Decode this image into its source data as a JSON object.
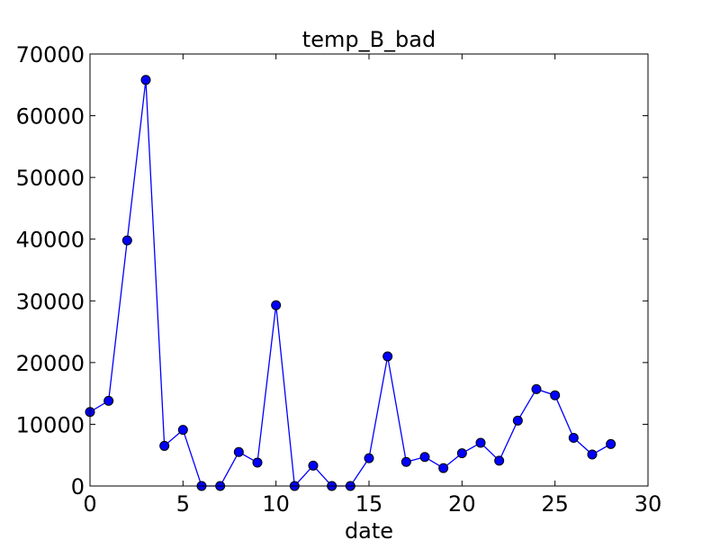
{
  "chart_data": {
    "type": "line",
    "title": "temp_B_bad",
    "xlabel": "date",
    "ylabel": "",
    "xlim": [
      0,
      30
    ],
    "ylim": [
      0,
      70000
    ],
    "xticks": [
      "0",
      "5",
      "10",
      "15",
      "20",
      "25",
      "30"
    ],
    "yticks": [
      "0",
      "10000",
      "20000",
      "30000",
      "40000",
      "50000",
      "60000",
      "70000"
    ],
    "grid": false,
    "color": "#0000ff",
    "series": [
      {
        "x": [
          0,
          1,
          2,
          3,
          4,
          5,
          6,
          7,
          8,
          9,
          10,
          11,
          12,
          13,
          14,
          15,
          16,
          17,
          18,
          19,
          20,
          21,
          22,
          23,
          24,
          25,
          26,
          27,
          28
        ],
        "y": [
          12000,
          13800,
          39800,
          65800,
          6500,
          9100,
          0,
          0,
          5500,
          3800,
          29300,
          0,
          3300,
          0,
          0,
          4500,
          21000,
          3900,
          4700,
          2900,
          5300,
          7000,
          4100,
          10600,
          15700,
          14700,
          7800,
          5100,
          6800
        ]
      }
    ]
  }
}
